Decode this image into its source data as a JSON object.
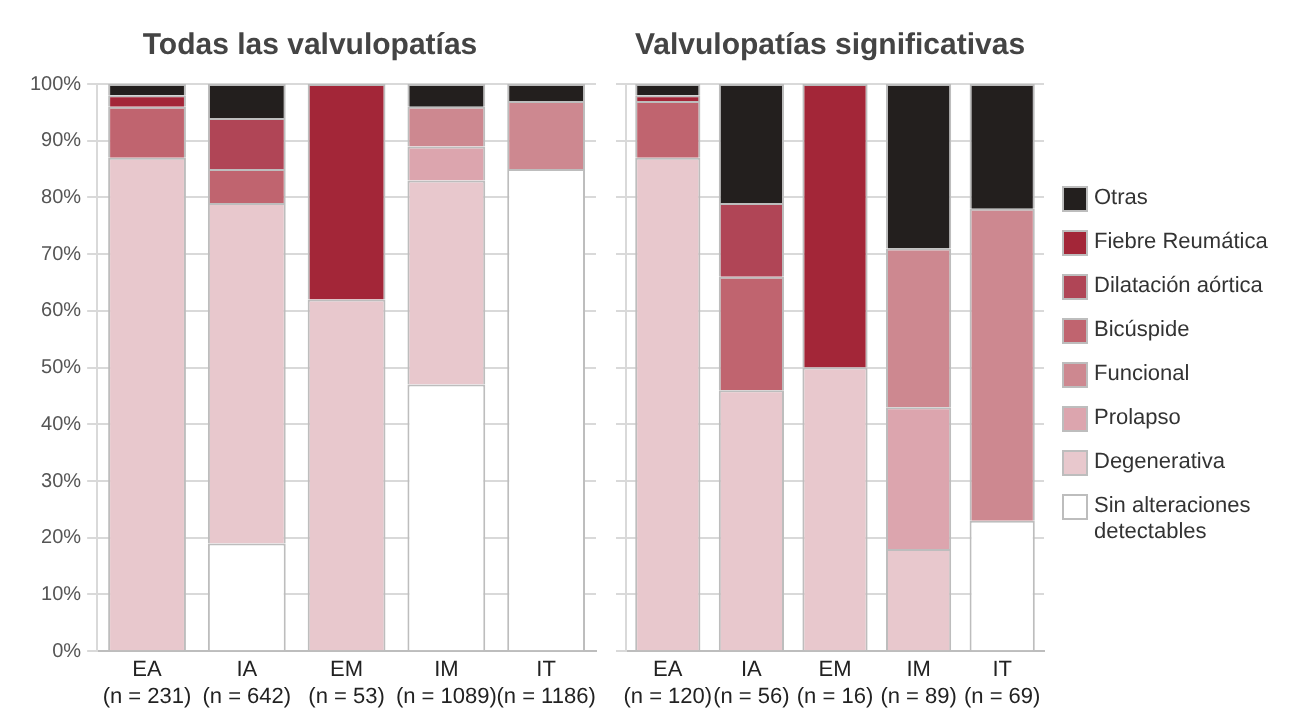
{
  "chart_data": [
    {
      "type": "bar",
      "title": "Todas las valvulopatías",
      "stacked": true,
      "categories": [
        "EA\n(n = 231)",
        "IA\n(n = 642)",
        "EM\n(n = 53)",
        "IM\n(n = 1089)",
        "IT\n(n = 1186)"
      ],
      "ylim": [
        0,
        100
      ],
      "yticks": [
        {
          "value": 0,
          "label": "0%"
        },
        {
          "value": 10,
          "label": "10%"
        },
        {
          "value": 20,
          "label": "20%"
        },
        {
          "value": 30,
          "label": "30%"
        },
        {
          "value": 40,
          "label": "40%"
        },
        {
          "value": 50,
          "label": "50%"
        },
        {
          "value": 60,
          "label": "60%"
        },
        {
          "value": 70,
          "label": "70%"
        },
        {
          "value": 80,
          "label": "80%"
        },
        {
          "value": 90,
          "label": "90%"
        },
        {
          "value": 100,
          "label": "100%"
        }
      ],
      "grid": "y",
      "legend": false,
      "series": [
        {
          "color": "#ffffff",
          "values": [
            0,
            19,
            0,
            47,
            85
          ]
        },
        {
          "color": "#e8c8cd",
          "values": [
            87,
            60,
            62,
            36,
            0
          ]
        },
        {
          "color": "#dca5ae",
          "values": [
            0,
            0,
            0,
            6,
            0
          ]
        },
        {
          "color": "#cd8890",
          "values": [
            0,
            0,
            0,
            7,
            12
          ]
        },
        {
          "color": "#c0646f",
          "values": [
            9,
            6,
            0,
            0,
            0
          ]
        },
        {
          "color": "#b04556",
          "values": [
            0,
            9,
            0,
            0,
            0
          ]
        },
        {
          "color": "#a32638",
          "values": [
            2,
            0,
            38,
            0,
            0
          ]
        },
        {
          "color": "#231f1e",
          "values": [
            2,
            6,
            0,
            4,
            3
          ]
        }
      ]
    },
    {
      "type": "bar",
      "title": "Valvulopatías significativas",
      "stacked": true,
      "categories": [
        "EA\n(n = 120)",
        "IA\n(n = 56)",
        "EM\n(n = 16)",
        "IM\n(n = 89)",
        "IT\n(n = 69)"
      ],
      "ylim": [
        0,
        100
      ],
      "yticks": [
        0,
        10,
        20,
        30,
        40,
        50,
        60,
        70,
        80,
        90,
        100
      ],
      "tick_labels": "x",
      "grid": "y",
      "legend": "right",
      "series": [
        {
          "name": "Sin alteraciones detectables",
          "color": "#ffffff",
          "values": [
            0,
            0,
            0,
            0,
            23
          ]
        },
        {
          "name": "Degenerativa",
          "color": "#e8c8cd",
          "values": [
            87,
            46,
            50,
            18,
            0
          ]
        },
        {
          "name": "Prolapso",
          "color": "#dca5ae",
          "values": [
            0,
            0,
            0,
            25,
            0
          ]
        },
        {
          "name": "Funcional",
          "color": "#cd8890",
          "values": [
            0,
            0,
            0,
            28,
            55
          ]
        },
        {
          "name": "Bicúspide",
          "color": "#c0646f",
          "values": [
            10,
            20,
            0,
            0,
            0
          ]
        },
        {
          "name": "Dilatación aórtica",
          "color": "#b04556",
          "values": [
            0,
            13,
            0,
            0,
            0
          ]
        },
        {
          "name": "Fiebre Reumática",
          "color": "#a32638",
          "values": [
            1,
            0,
            50,
            0,
            0
          ]
        },
        {
          "name": "Otras",
          "color": "#231f1e",
          "values": [
            2,
            21,
            0,
            29,
            22
          ]
        }
      ]
    }
  ]
}
